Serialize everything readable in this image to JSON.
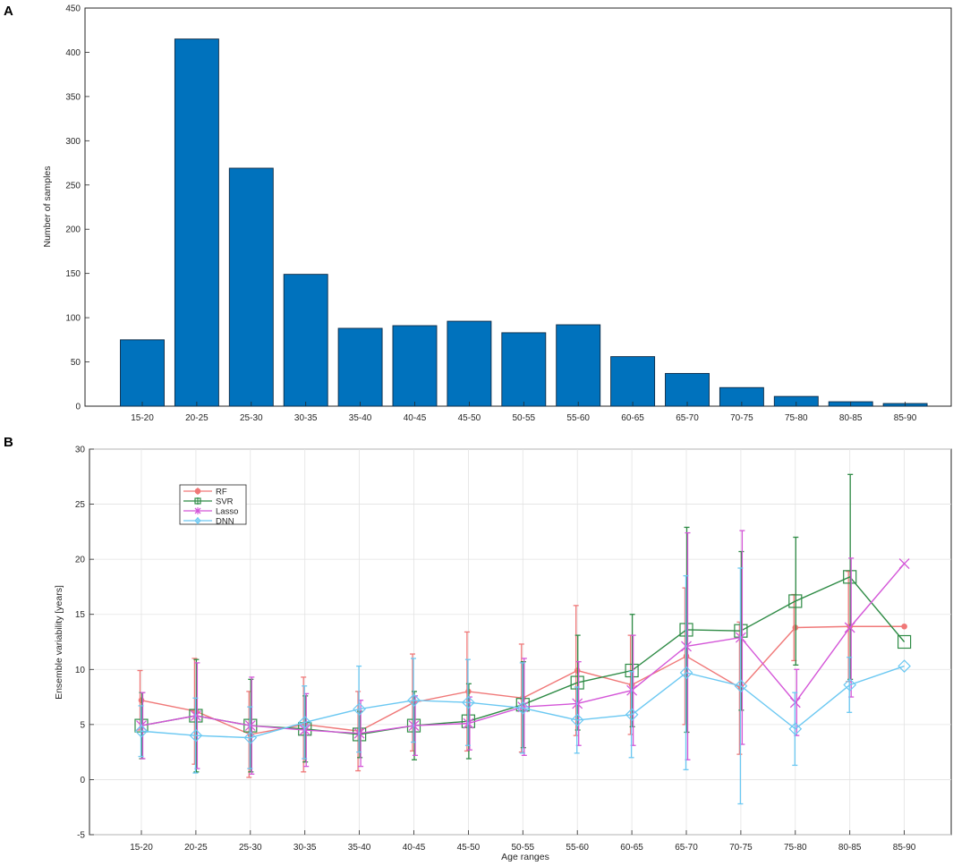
{
  "panel_letters": [
    "A",
    "B"
  ],
  "chart_data": [
    {
      "panel": "A",
      "type": "bar",
      "categories": [
        "15-20",
        "20-25",
        "25-30",
        "30-35",
        "35-40",
        "40-45",
        "45-50",
        "50-55",
        "55-60",
        "60-65",
        "65-70",
        "70-75",
        "75-80",
        "80-85",
        "85-90"
      ],
      "values": [
        75,
        415,
        269,
        149,
        88,
        91,
        96,
        83,
        92,
        56,
        37,
        21,
        11,
        5,
        3
      ],
      "title": "",
      "xlabel": "",
      "ylabel": "Number of samples",
      "ylim": [
        0,
        450
      ],
      "yticks": [
        0,
        50,
        100,
        150,
        200,
        250,
        300,
        350,
        400,
        450
      ],
      "grid": false,
      "bar_color": "#0072BD"
    },
    {
      "panel": "B",
      "type": "line",
      "categories": [
        "15-20",
        "20-25",
        "25-30",
        "30-35",
        "35-40",
        "40-45",
        "45-50",
        "50-55",
        "55-60",
        "60-65",
        "65-70",
        "70-75",
        "75-80",
        "80-85",
        "85-90"
      ],
      "title": "",
      "xlabel": "Age ranges",
      "ylabel": "Ensemble variability [years]",
      "ylim": [
        -5,
        30
      ],
      "yticks": [
        -5,
        0,
        5,
        10,
        15,
        20,
        25,
        30
      ],
      "grid": true,
      "legend_position": "top-left",
      "series": [
        {
          "name": "RF",
          "color": "#F07878",
          "marker": "dot",
          "values": [
            7.2,
            6.2,
            4.1,
            5.0,
            4.4,
            7.0,
            8.0,
            7.4,
            9.9,
            8.6,
            11.2,
            8.3,
            13.8,
            13.9,
            13.9
          ],
          "errors": [
            2.7,
            4.8,
            3.9,
            4.3,
            3.6,
            4.4,
            5.4,
            4.9,
            5.9,
            4.5,
            6.2,
            6.0,
            3.0,
            5.0,
            0
          ]
        },
        {
          "name": "SVR",
          "color": "#2E8B45",
          "marker": "square",
          "values": [
            4.9,
            5.8,
            4.9,
            4.6,
            4.1,
            4.9,
            5.3,
            6.8,
            8.8,
            9.9,
            13.6,
            13.5,
            16.2,
            18.4,
            12.5
          ],
          "errors": [
            3.0,
            5.1,
            4.2,
            3.0,
            2.1,
            3.1,
            3.4,
            3.9,
            4.3,
            5.1,
            9.3,
            7.2,
            5.8,
            9.3,
            0
          ]
        },
        {
          "name": "Lasso",
          "color": "#D456D8",
          "marker": "cross",
          "values": [
            4.9,
            5.8,
            4.9,
            4.5,
            4.2,
            4.9,
            5.1,
            6.6,
            6.9,
            8.1,
            12.1,
            12.9,
            7.0,
            13.8,
            19.6
          ],
          "errors": [
            3.0,
            4.8,
            4.4,
            3.3,
            3.0,
            2.7,
            2.4,
            4.4,
            3.8,
            5.0,
            10.3,
            9.7,
            3.0,
            6.3,
            0
          ]
        },
        {
          "name": "DNN",
          "color": "#6BC8F2",
          "marker": "diamond",
          "values": [
            4.4,
            4.0,
            3.8,
            5.2,
            6.4,
            7.2,
            7.0,
            6.5,
            5.4,
            5.9,
            9.7,
            8.5,
            4.6,
            8.6,
            10.3
          ],
          "errors": [
            2.3,
            3.4,
            2.8,
            3.3,
            3.9,
            3.8,
            3.9,
            4.1,
            3.0,
            3.9,
            8.8,
            10.7,
            3.3,
            2.5,
            0
          ]
        }
      ]
    }
  ]
}
